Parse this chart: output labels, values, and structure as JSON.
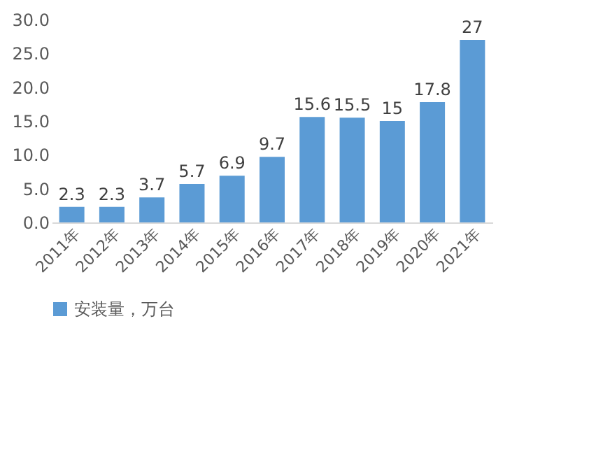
{
  "chart_data": {
    "type": "bar",
    "categories": [
      "2011年",
      "2012年",
      "2013年",
      "2014年",
      "2015年",
      "2016年",
      "2017年",
      "2018年",
      "2019年",
      "2020年",
      "2021年"
    ],
    "series": [
      {
        "name": "安装量，万台",
        "color": "#5b9bd5",
        "values": [
          2.3,
          2.3,
          3.7,
          5.7,
          6.9,
          9.7,
          15.6,
          15.5,
          15,
          17.8,
          27
        ]
      }
    ],
    "ylim": [
      0,
      30
    ],
    "yticks": [
      {
        "value": 0,
        "label": "0.0"
      },
      {
        "value": 5,
        "label": "5.0"
      },
      {
        "value": 10,
        "label": "10.0"
      },
      {
        "value": 15,
        "label": "15.0"
      },
      {
        "value": 20,
        "label": "20.0"
      },
      {
        "value": 25,
        "label": "25.0"
      },
      {
        "value": 30,
        "label": "30.0"
      }
    ],
    "data_labels": true,
    "legend": "bottom",
    "grid": false
  }
}
